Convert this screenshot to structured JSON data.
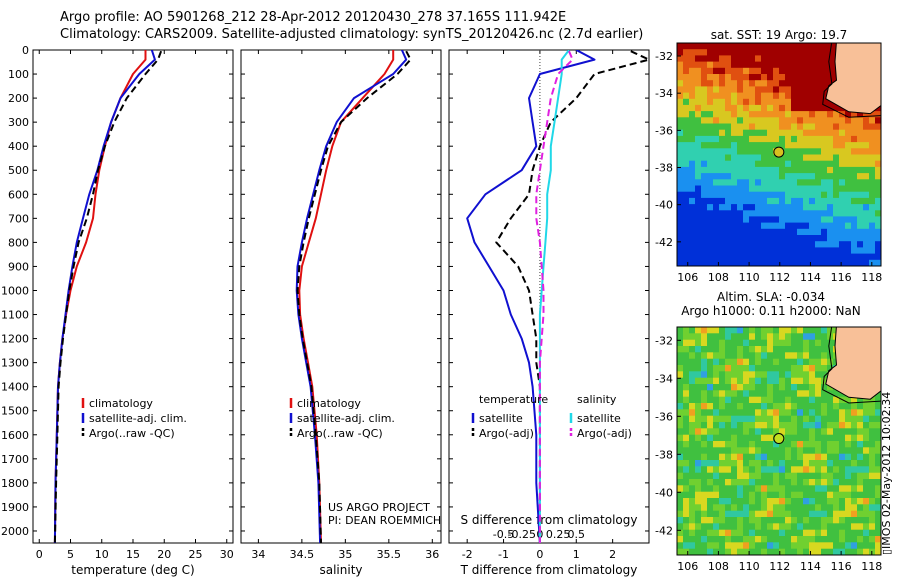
{
  "header": {
    "line1": "Argo profile: AO 5901268_212 28-Apr-2012 20120430_278 37.165S 111.942E",
    "line2": "Climatology: CARS2009. Satellite-adjusted climatology: synTS_20120426.nc (2.7d earlier)"
  },
  "stamp": "▯IMOS 02-May-2012 10:02:34",
  "depth_ticks": [
    0,
    100,
    200,
    300,
    400,
    500,
    600,
    700,
    800,
    900,
    1000,
    1100,
    1200,
    1300,
    1400,
    1500,
    1600,
    1700,
    1800,
    1900,
    2000
  ],
  "colors": {
    "climatology": "#e01010",
    "satellite": "#1010d0",
    "argo": "#000000",
    "sal_satellite": "#20d8e8",
    "sal_argo": "#e020e0",
    "dotted": "#404040"
  },
  "chart_data": [
    {
      "type": "line",
      "xlabel": "temperature (deg C)",
      "ylabel": "",
      "xlim": [
        -1,
        31
      ],
      "ylim": [
        2050,
        0
      ],
      "xticks": [
        0,
        5,
        10,
        15,
        20,
        25,
        30
      ],
      "legend": {
        "placement": "lower-middle",
        "entries": [
          "climatology",
          "satellite-adj. clim.",
          "Argo(..raw -QC)"
        ]
      },
      "series": [
        {
          "name": "climatology",
          "style": "solid",
          "color": "climatology",
          "x": [
            17.0,
            17.0,
            15.0,
            13.0,
            11.5,
            10.5,
            9.6,
            9.0,
            8.6,
            7.5,
            6.0,
            5.0,
            4.3,
            3.7,
            3.3,
            3.0,
            2.8,
            2.6,
            2.5
          ],
          "y": [
            0,
            40,
            100,
            200,
            300,
            400,
            500,
            600,
            700,
            800,
            900,
            1000,
            1100,
            1200,
            1300,
            1400,
            1600,
            1800,
            2050
          ]
        },
        {
          "name": "satellite-adj. clim.",
          "style": "solid",
          "color": "satellite",
          "x": [
            18.0,
            18.5,
            16.0,
            13.0,
            11.5,
            10.3,
            9.3,
            8.0,
            7.0,
            6.0,
            5.3,
            4.7,
            4.2,
            3.7,
            3.3,
            3.0,
            2.8,
            2.6,
            2.5
          ],
          "y": [
            0,
            40,
            100,
            200,
            300,
            400,
            500,
            600,
            700,
            800,
            900,
            1000,
            1100,
            1200,
            1300,
            1400,
            1600,
            1800,
            2050
          ]
        },
        {
          "name": "Argo(..raw -QC)",
          "style": "dashed",
          "color": "argo",
          "x": [
            19.5,
            19.0,
            17.0,
            14.0,
            12.0,
            10.5,
            9.4,
            8.6,
            7.6,
            6.3,
            5.5,
            4.8,
            4.3,
            3.8,
            3.4,
            3.1,
            2.9,
            2.7,
            2.5
          ],
          "y": [
            5,
            40,
            100,
            200,
            300,
            400,
            500,
            600,
            700,
            800,
            900,
            1000,
            1100,
            1200,
            1300,
            1400,
            1600,
            1800,
            2050
          ]
        }
      ]
    },
    {
      "type": "line",
      "xlabel": "salinity",
      "xlim": [
        33.8,
        36.1
      ],
      "ylim": [
        2050,
        0
      ],
      "xticks": [
        34,
        34.5,
        35,
        35.5,
        36
      ],
      "legend": {
        "placement": "lower-middle",
        "entries": [
          "climatology",
          "satellite-adj. clim.",
          "Argo(..raw -QC)"
        ]
      },
      "annotation": [
        "US ARGO PROJECT",
        "PI: DEAN ROEMMICH"
      ],
      "series": [
        {
          "name": "climatology",
          "style": "solid",
          "color": "climatology",
          "x": [
            35.55,
            35.55,
            35.45,
            35.2,
            34.95,
            34.85,
            34.78,
            34.72,
            34.66,
            34.58,
            34.5,
            34.47,
            34.48,
            34.52,
            34.57,
            34.62,
            34.67,
            34.7,
            34.72
          ],
          "y": [
            0,
            40,
            100,
            200,
            300,
            400,
            500,
            600,
            700,
            800,
            900,
            1000,
            1100,
            1200,
            1300,
            1400,
            1600,
            1800,
            2050
          ]
        },
        {
          "name": "satellite-adj. clim.",
          "style": "solid",
          "color": "satellite",
          "x": [
            35.65,
            35.7,
            35.55,
            35.1,
            34.9,
            34.78,
            34.7,
            34.63,
            34.56,
            34.5,
            34.45,
            34.44,
            34.46,
            34.5,
            34.55,
            34.6,
            34.65,
            34.69,
            34.71
          ],
          "y": [
            0,
            40,
            100,
            200,
            300,
            400,
            500,
            600,
            700,
            800,
            900,
            1000,
            1100,
            1200,
            1300,
            1400,
            1600,
            1800,
            2050
          ]
        },
        {
          "name": "Argo(..raw -QC)",
          "style": "dashed",
          "color": "argo",
          "x": [
            35.7,
            35.75,
            35.6,
            35.25,
            34.95,
            34.8,
            34.72,
            34.65,
            34.58,
            34.52,
            34.47,
            34.45,
            34.47,
            34.51,
            34.56,
            34.61,
            34.66,
            34.7,
            34.72
          ],
          "y": [
            5,
            40,
            100,
            200,
            300,
            400,
            500,
            600,
            700,
            800,
            900,
            1000,
            1100,
            1200,
            1300,
            1400,
            1600,
            1800,
            2050
          ]
        }
      ]
    },
    {
      "type": "line",
      "xlabel": "T difference from climatology",
      "top_axis_label": "S difference from climatology",
      "xlim": [
        -2.5,
        3.0
      ],
      "ylim": [
        2050,
        0
      ],
      "xticks": [
        -2,
        -1,
        0,
        1,
        2
      ],
      "top_ticks": [
        {
          "label": "-0.5",
          "value": -1
        },
        {
          "label": "-0.25",
          "value": -0.5
        },
        {
          "label": "0",
          "value": 0
        },
        {
          "label": "0.25",
          "value": 0.5
        },
        {
          "label": "0.5",
          "value": 1
        }
      ],
      "legend": {
        "placement": "lower",
        "groups": [
          {
            "title": "temperature",
            "entries": [
              "satellite",
              "Argo(-adj)"
            ]
          },
          {
            "title": "salinity",
            "entries": [
              "satellite",
              "Argo(-adj)"
            ]
          }
        ]
      },
      "series": [
        {
          "name": "temperature satellite",
          "style": "solid",
          "color": "satellite",
          "x": [
            1.0,
            1.5,
            0.0,
            -0.3,
            -0.2,
            -0.1,
            -0.5,
            -1.5,
            -2.0,
            -1.8,
            -1.4,
            -1.0,
            -0.8,
            -0.5,
            -0.3,
            -0.2,
            -0.1,
            -0.1,
            0.0
          ],
          "y": [
            0,
            40,
            100,
            200,
            300,
            400,
            500,
            600,
            700,
            800,
            900,
            1000,
            1100,
            1200,
            1300,
            1400,
            1600,
            1800,
            2050
          ]
        },
        {
          "name": "temperature Argo(-adj)",
          "style": "dashed",
          "color": "argo",
          "x": [
            2.5,
            3.0,
            1.5,
            1.0,
            0.3,
            0.0,
            -0.2,
            -0.3,
            -0.8,
            -1.2,
            -0.6,
            -0.3,
            -0.2,
            -0.1,
            -0.1,
            0.0,
            0.0,
            0.0,
            0.0
          ],
          "y": [
            5,
            40,
            100,
            200,
            300,
            400,
            500,
            600,
            700,
            800,
            900,
            1000,
            1100,
            1200,
            1300,
            1400,
            1600,
            1800,
            2050
          ]
        },
        {
          "name": "salinity satellite",
          "style": "solid",
          "color": "sal_satellite",
          "x": [
            0.8,
            0.6,
            0.6,
            0.5,
            0.4,
            0.3,
            0.3,
            0.2,
            0.2,
            0.15,
            0.1,
            0.05,
            0.0,
            0.0,
            0.0,
            0.0,
            0.0,
            0.0,
            0.0
          ],
          "y": [
            0,
            40,
            100,
            200,
            300,
            400,
            500,
            600,
            700,
            800,
            900,
            1000,
            1100,
            1200,
            1300,
            1400,
            1600,
            1800,
            2050
          ]
        },
        {
          "name": "salinity Argo(-adj)",
          "style": "dashed",
          "color": "sal_argo",
          "x": [
            0.8,
            0.9,
            0.5,
            0.3,
            0.2,
            0.1,
            0.0,
            -0.1,
            -0.1,
            0.0,
            0.05,
            0.1,
            0.1,
            0.05,
            0.0,
            0.0,
            0.0,
            0.0,
            0.0
          ],
          "y": [
            5,
            40,
            100,
            200,
            300,
            400,
            500,
            600,
            700,
            800,
            900,
            1000,
            1100,
            1200,
            1300,
            1400,
            1600,
            1800,
            2050
          ]
        }
      ]
    }
  ],
  "maps": [
    {
      "title": "sat. SST: 19 Argo: 19.7",
      "xticks": [
        106,
        108,
        110,
        112,
        114,
        116,
        118
      ],
      "yticks": [
        -32,
        -34,
        -36,
        -38,
        -40,
        -42
      ],
      "marker": {
        "lon": 111.94,
        "lat": -37.17
      },
      "type": "sst"
    },
    {
      "title_lines": [
        "Altim. SLA: -0.034",
        "Argo h1000: 0.11 h2000: NaN"
      ],
      "xticks": [
        106,
        108,
        110,
        112,
        114,
        116,
        118
      ],
      "yticks": [
        -32,
        -34,
        -36,
        -38,
        -40,
        -42
      ],
      "marker": {
        "lon": 111.94,
        "lat": -37.17
      },
      "type": "sla"
    }
  ]
}
